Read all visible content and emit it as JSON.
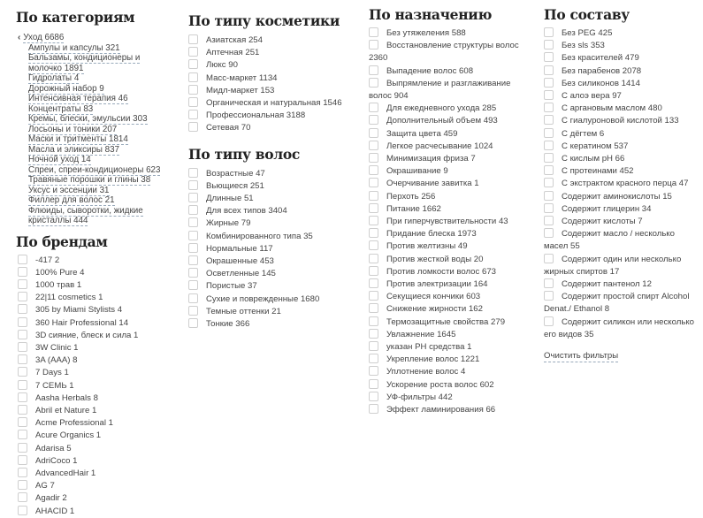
{
  "categories": {
    "title": "По категориям",
    "root": "Уход 6686",
    "items": [
      "Ампулы и капсулы 321",
      "Бальзамы, кондиционеры и молочко 1891",
      "Гидролаты 4",
      "Дорожный набор 9",
      "Интенсивная терапия 46",
      "Концентраты 83",
      "Кремы, блески, эмульсии 303",
      "Лосьоны и тоники 207",
      "Маски и тритменты 1814",
      "Масла и эликсиры 837",
      "Ночной уход 14",
      "Спреи, спреи-кондиционеры 623",
      "Травяные порошки и глины 38",
      "Уксус и эссенции 31",
      "Филлер для волос 21",
      "Флюиды, сыворотки, жидкие кристаллы 444"
    ]
  },
  "brands": {
    "title": "По брендам",
    "items": [
      "-417 2",
      "100% Pure 4",
      "1000 трав 1",
      "22|11 cosmetics 1",
      "305 by Miami Stylists 4",
      "360 Hair Professional 14",
      "3D сияние, блеск и сила 1",
      "3W Clinic 1",
      "3A (AAA) 8",
      "7 Days 1",
      "7 CEMЬ 1",
      "Aasha Herbals 8",
      "Abril et Nature 1",
      "Acme Professional 1",
      "Acure Organics 1",
      "Adarisa 5",
      "AdriCoco 1",
      "AdvancedHair 1",
      "AG 7",
      "Agadir 2",
      "AHACID 1"
    ]
  },
  "cosmetic_type": {
    "title": "По типу косметики",
    "items": [
      "Азиатская 254",
      "Аптечная 251",
      "Люкс 90",
      "Масс-маркет 1134",
      "Мидл-маркет 153",
      "Органическая и натуральная 1546",
      "Профессиональная 3188",
      "Сетевая 70"
    ]
  },
  "hair_type": {
    "title": "По типу волос",
    "items": [
      "Возрастные 47",
      "Вьющиеся 251",
      "Длинные 51",
      "Для всех типов 3404",
      "Жирные 79",
      "Комбинированного типа 35",
      "Нормальные 117",
      "Окрашенные 453",
      "Осветленные 145",
      "Пористые 37",
      "Сухие и поврежденные 1680",
      "Темные оттенки 21",
      "Тонкие 366"
    ]
  },
  "purpose": {
    "title": "По назначению",
    "items": [
      "Без утяжеления 588",
      "Восстановление структуры волос 2360",
      "Выпадение волос 608",
      "Выпрямление и разглаживание волос 904",
      "Для ежедневного ухода 285",
      "Дополнительный объем 493",
      "Защита цвета 459",
      "Легкое расчесывание 1024",
      "Минимизация фриза 7",
      "Окрашивание 9",
      "Очерчивание завитка 1",
      "Перхоть 256",
      "Питание 1662",
      "При гиперчувствительности 43",
      "Придание блеска 1973",
      "Против желтизны 49",
      "Против жесткой воды 20",
      "Против ломкости волос 673",
      "Против электризации 164",
      "Секущиеся кончики 603",
      "Снижение жирности 162",
      "Термозащитные свойства 279",
      "Увлажнение 1645",
      "указан PH средства 1",
      "Укрепление волос 1221",
      "Уплотнение волос 4",
      "Ускорение роста волос 602",
      "УФ-фильтры 442",
      "Эффект ламинирования 66"
    ]
  },
  "composition": {
    "title": "По составу",
    "items": [
      "Без PEG 425",
      "Без sls 353",
      "Без красителей 479",
      "Без парабенов 2078",
      "Без силиконов 1414",
      "С алоэ вера 97",
      "С аргановым маслом 480",
      "С гиалуроновой кислотой 133",
      "С дёгтем 6",
      "С кератином 537",
      "С кислым pH 66",
      "С протеинами 452",
      "С экстрактом красного перца 47",
      "Содержит аминокислоты 15",
      "Содержит глицерин 34",
      "Содержит кислоты 7",
      "Содержит масло / несколько масел 55",
      "Содержит один или несколько жирных спиртов 17",
      "Содержит пантенол 12",
      "Содержит простой спирт Alcohol Denat./ Ethanol 8",
      "Содержит силикон или несколько его видов 35"
    ],
    "clear_label": "Очистить фильтры"
  }
}
